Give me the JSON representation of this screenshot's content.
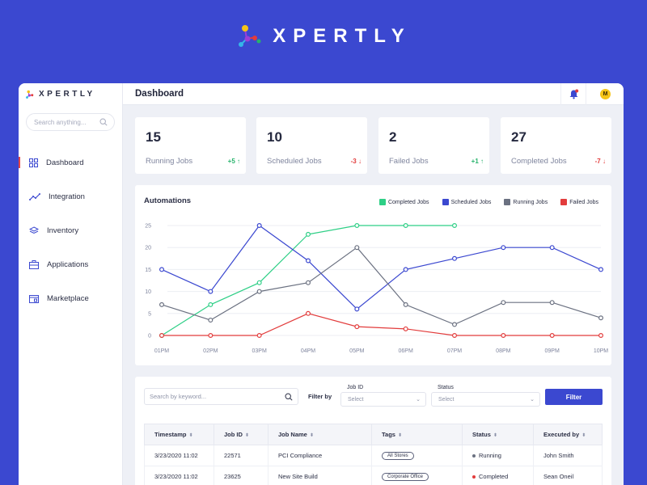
{
  "brand": {
    "name": "XPERTLY",
    "logo_colors": [
      "#f6c417",
      "#e23c3c",
      "#35b6e8",
      "#9b3fd8",
      "#26b36b"
    ]
  },
  "header": {
    "title": "Dashboard",
    "avatar_initial": "M"
  },
  "sidebar": {
    "search_placeholder": "Search anything...",
    "items": [
      {
        "label": "Dashboard",
        "icon": "grid-icon",
        "active": true
      },
      {
        "label": "Integration",
        "icon": "trend-icon"
      },
      {
        "label": "Inventory",
        "icon": "layers-icon"
      },
      {
        "label": "Applications",
        "icon": "briefcase-icon"
      },
      {
        "label": "Marketplace",
        "icon": "store-icon"
      }
    ]
  },
  "stats": [
    {
      "value": "15",
      "label": "Running Jobs",
      "delta": "+5",
      "direction": "up"
    },
    {
      "value": "10",
      "label": "Scheduled Jobs",
      "delta": "-3",
      "direction": "down"
    },
    {
      "value": "2",
      "label": "Failed Jobs",
      "delta": "+1",
      "direction": "up"
    },
    {
      "value": "27",
      "label": "Completed Jobs",
      "delta": "-7",
      "direction": "down"
    }
  ],
  "chart_data": {
    "type": "line",
    "title": "Automations",
    "x": [
      "01PM",
      "02PM",
      "03PM",
      "04PM",
      "05PM",
      "06PM",
      "07PM",
      "08PM",
      "09PM",
      "10PM"
    ],
    "ylim": [
      0,
      25
    ],
    "yticks": [
      0,
      5,
      10,
      15,
      20,
      25
    ],
    "grid": true,
    "legend_position": "top-right",
    "series": [
      {
        "name": "Completed Jobs",
        "color": "#2ecf86",
        "values": [
          0,
          7,
          12,
          23,
          25,
          25,
          25,
          null,
          null,
          null
        ]
      },
      {
        "name": "Scheduled Jobs",
        "color": "#3b48d0",
        "values": [
          15,
          10,
          25,
          17,
          6,
          15,
          17.5,
          20,
          20,
          15
        ]
      },
      {
        "name": "Running Jobs",
        "color": "#6b7181",
        "values": [
          7,
          3.5,
          10,
          12,
          20,
          7,
          2.5,
          7.5,
          7.5,
          4
        ]
      },
      {
        "name": "Failed Jobs",
        "color": "#e23c3c",
        "values": [
          0,
          0,
          0,
          5,
          2,
          1.5,
          0,
          0,
          0,
          0
        ]
      }
    ]
  },
  "filters": {
    "search_placeholder": "Search by keyword...",
    "filter_by_label": "Filter by",
    "job_id_label": "Job ID",
    "job_id_placeholder": "Select",
    "status_label": "Status",
    "status_placeholder": "Select",
    "button_label": "Filter"
  },
  "table": {
    "columns": [
      "Timestamp",
      "Job ID",
      "Job Name",
      "Tags",
      "Status",
      "Executed by"
    ],
    "rows": [
      {
        "timestamp": "3/23/2020  11:02",
        "job_id": "22571",
        "job_name": "PCI Compliance",
        "tag": "All Stores",
        "status": "Running",
        "status_color": "#6b7181",
        "executed_by": "John Smith"
      },
      {
        "timestamp": "3/23/2020  11:02",
        "job_id": "23625",
        "job_name": "New Site Build",
        "tag": "Corporate Office",
        "status": "Completed",
        "status_color": "#e23c3c",
        "executed_by": "Sean Oneil"
      }
    ]
  }
}
